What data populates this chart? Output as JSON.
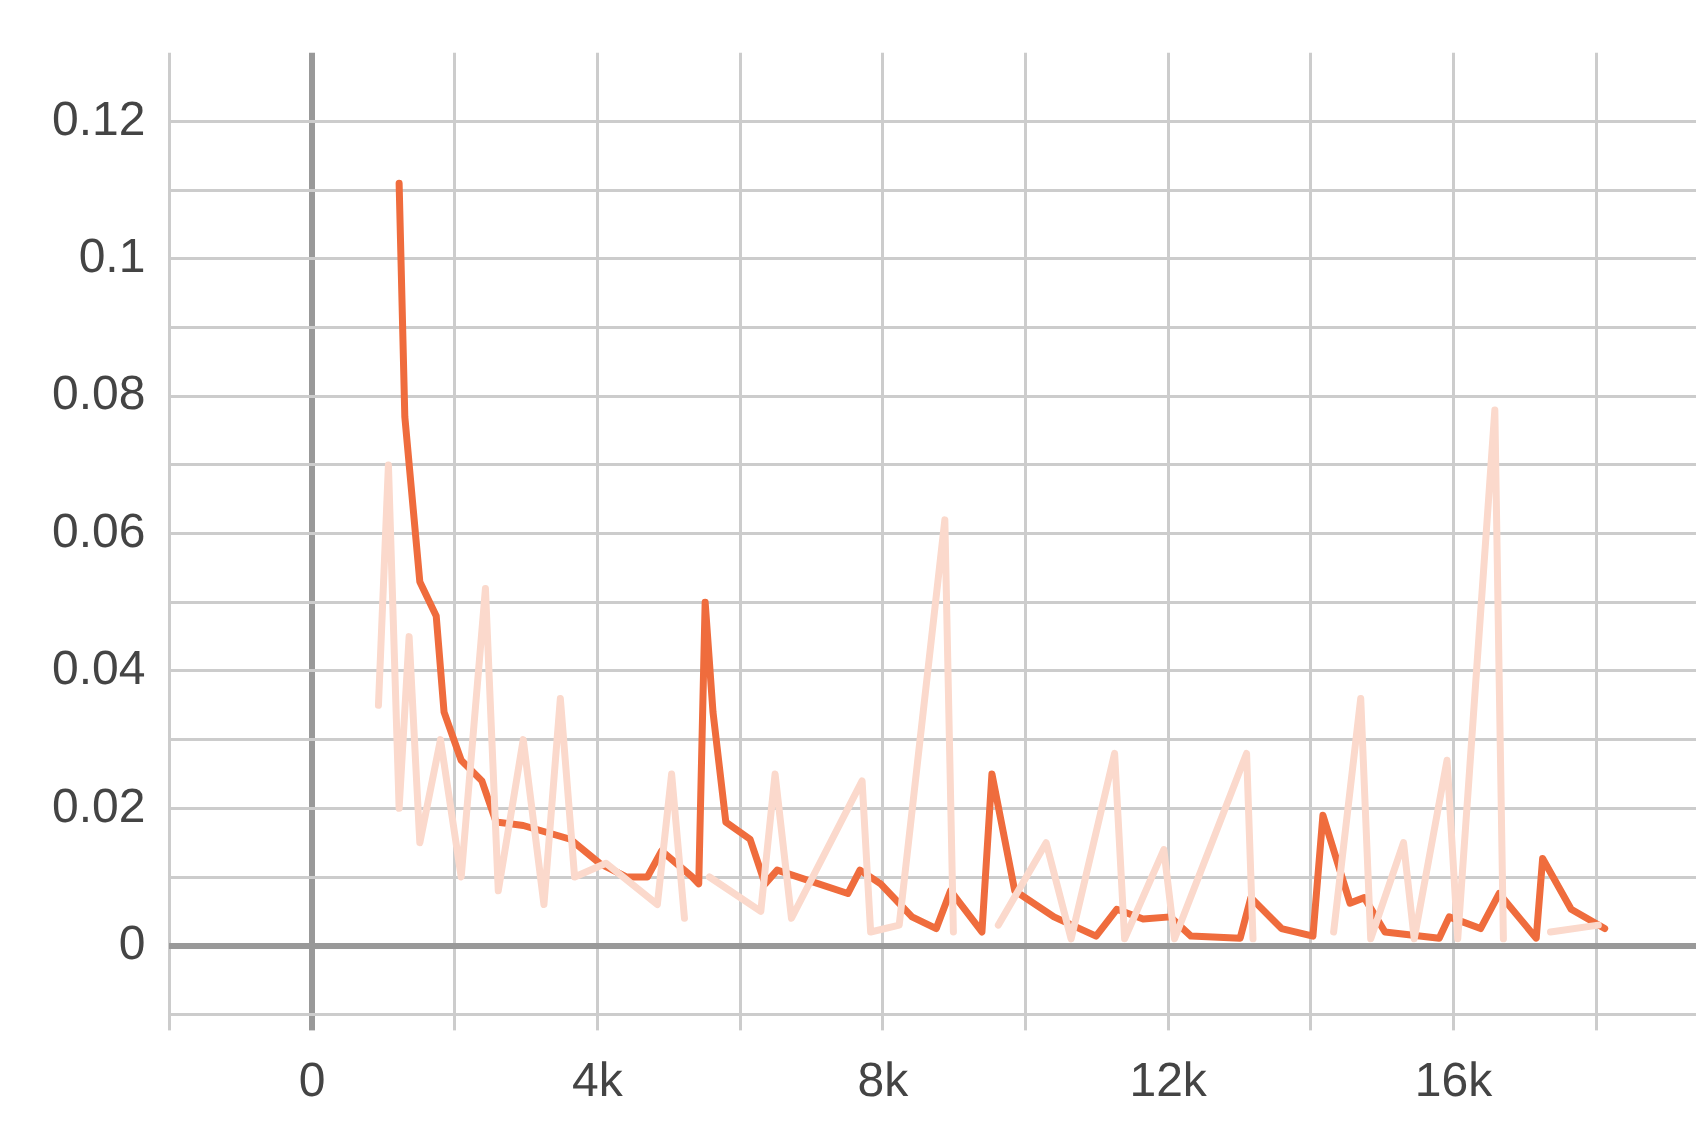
{
  "chart_data": {
    "type": "line",
    "xlim": [
      -2000,
      19400
    ],
    "ylim": [
      -0.01,
      0.13
    ],
    "xticks": [
      {
        "value": -2000,
        "label": null
      },
      0,
      {
        "value": 2000,
        "label": null
      },
      {
        "value": 4000,
        "label": "4k"
      },
      {
        "value": 6000,
        "label": null
      },
      {
        "value": 8000,
        "label": "8k"
      },
      {
        "value": 10000,
        "label": null
      },
      {
        "value": 12000,
        "label": "12k"
      },
      {
        "value": 14000,
        "label": null
      },
      {
        "value": 16000,
        "label": "16k"
      },
      {
        "value": 18000,
        "label": null
      }
    ],
    "yticks": [
      {
        "value": -0.01,
        "label": null
      },
      0,
      {
        "value": 0.01,
        "label": null
      },
      0.02,
      {
        "value": 0.03,
        "label": null
      },
      0.04,
      {
        "value": 0.05,
        "label": null
      },
      0.06,
      {
        "value": 0.07,
        "label": null
      },
      0.08,
      {
        "value": 0.09,
        "label": null
      },
      0.1,
      {
        "value": 0.11,
        "label": null
      },
      0.12
    ],
    "grid": true,
    "legend": false,
    "marker": "none",
    "line_style": "solid",
    "series": [
      {
        "color": "#fbd9cc",
        "x": [
          930,
          1070,
          1220,
          1360,
          1510,
          1800,
          2090,
          2430,
          2610,
          2960,
          3250,
          3480,
          3680,
          4120,
          4840,
          5040,
          5220,
          5450,
          5570,
          6290,
          6490,
          6720,
          7710,
          7830,
          8230,
          8870,
          8990,
          9480,
          9620,
          10290,
          10640,
          11250,
          11390,
          11940,
          12090,
          13100,
          13190,
          14170,
          14320,
          14700,
          14840,
          15300,
          15450,
          15910,
          16060,
          16580,
          16700,
          17250,
          17360,
          18030
        ],
        "values": [
          0.035,
          0.07,
          0.02,
          0.045,
          0.015,
          0.03,
          0.01,
          0.052,
          0.008,
          0.03,
          0.006,
          0.036,
          0.01,
          0.012,
          0.006,
          0.025,
          0.004,
          null,
          0.01,
          0.005,
          0.025,
          0.004,
          0.024,
          0.002,
          0.003,
          0.062,
          0.002,
          null,
          0.003,
          0.015,
          0.001,
          0.028,
          0.001,
          0.014,
          0.001,
          0.028,
          0.001,
          null,
          0.002,
          0.036,
          0.001,
          0.015,
          0.001,
          0.027,
          0.001,
          0.078,
          0.001,
          null,
          0.002,
          0.003
        ]
      },
      {
        "color": "#ef6c3d",
        "x": [
          1220,
          1300,
          1510,
          1740,
          1850,
          2090,
          2380,
          2580,
          2960,
          3620,
          4030,
          4410,
          4700,
          4900,
          5330,
          5420,
          5510,
          5620,
          5800,
          6140,
          6350,
          6520,
          7510,
          7680,
          7970,
          8410,
          8750,
          8950,
          9390,
          9530,
          9850,
          10400,
          10990,
          11280,
          11650,
          12030,
          12320,
          13010,
          13160,
          13590,
          14030,
          14170,
          14550,
          14750,
          15040,
          15800,
          15940,
          16380,
          16640,
          17160,
          17250,
          17650,
          18120
        ],
        "values": [
          0.111,
          0.077,
          0.053,
          0.048,
          0.034,
          0.027,
          0.024,
          0.018,
          0.0175,
          0.0155,
          0.012,
          0.01,
          0.01,
          0.0138,
          0.01,
          0.009,
          0.05,
          0.034,
          0.018,
          0.0155,
          0.009,
          0.011,
          0.0076,
          0.011,
          0.009,
          0.0042,
          0.0025,
          0.008,
          0.002,
          0.025,
          0.008,
          0.0042,
          0.0014,
          0.0053,
          0.0039,
          0.0042,
          0.0014,
          0.0011,
          0.007,
          0.0025,
          0.0014,
          0.019,
          0.0062,
          0.007,
          0.002,
          0.0011,
          0.0042,
          0.0025,
          0.0076,
          0.0011,
          0.0127,
          0.0053,
          0.0025
        ]
      }
    ]
  }
}
